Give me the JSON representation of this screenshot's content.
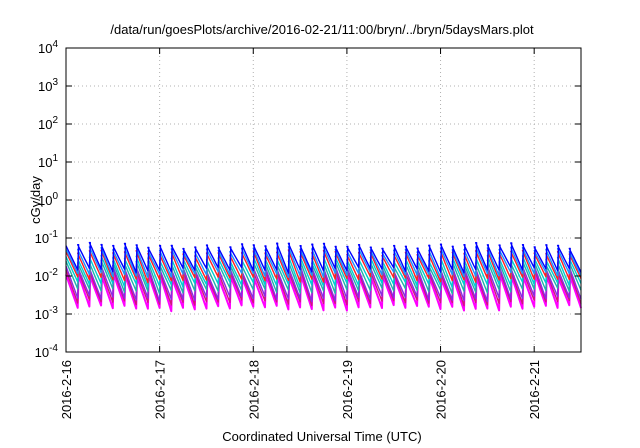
{
  "chart_data": {
    "type": "line",
    "title": "/data/run/goesPlots/archive/2016-02-21/11:00/bryn/../bryn/5daysMars.plot",
    "xlabel": "Coordinated Universal Time (UTC)",
    "ylabel": "cGy/day",
    "xlim": [
      "2016-02-16",
      "2016-02-21 12:00"
    ],
    "xticks": [
      "2016-2-16",
      "2016-2-17",
      "2016-2-18",
      "2016-2-19",
      "2016-2-20",
      "2016-2-21"
    ],
    "yscale": "log",
    "ylim": [
      0.0001,
      10000
    ],
    "yticks": [
      {
        "base": "10",
        "exp": "-4"
      },
      {
        "base": "10",
        "exp": "-3"
      },
      {
        "base": "10",
        "exp": "-2"
      },
      {
        "base": "10",
        "exp": "-1"
      },
      {
        "base": "10",
        "exp": "0"
      },
      {
        "base": "10",
        "exp": "1"
      },
      {
        "base": "10",
        "exp": "2"
      },
      {
        "base": "10",
        "exp": "3"
      },
      {
        "base": "10",
        "exp": "4"
      }
    ],
    "grid": true,
    "legend": "none",
    "sawtooth_period_hours": 3,
    "series": [
      {
        "color": "#ff00ff",
        "peak": 0.012,
        "trough": 0.0016
      },
      {
        "color": "#d1147e",
        "peak": 0.015,
        "trough": 0.0022
      },
      {
        "color": "#8a2be2",
        "peak": 0.018,
        "trough": 0.0028
      },
      {
        "color": "#20b2aa",
        "peak": 0.024,
        "trough": 0.0045
      },
      {
        "color": "#00ced1",
        "peak": 0.032,
        "trough": 0.0065
      },
      {
        "color": "#ff2020",
        "peak": 0.045,
        "trough": 0.009
      },
      {
        "color": "#1e90ff",
        "peak": 0.055,
        "trough": 0.012
      },
      {
        "color": "#0000ff",
        "peak": 0.07,
        "trough": 0.016
      }
    ]
  }
}
